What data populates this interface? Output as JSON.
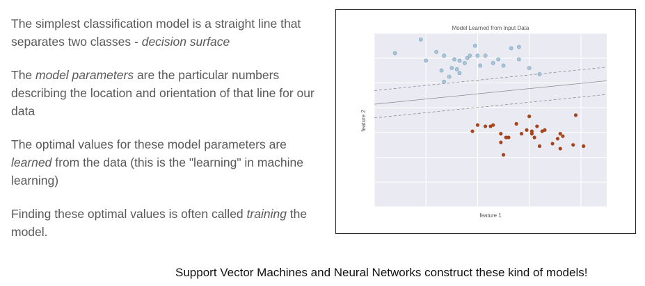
{
  "text": {
    "p1": [
      "The simplest classification model is a straight line that separates two classes - ",
      "decision surface",
      ""
    ],
    "p2": [
      "The ",
      "model parameters",
      " are the particular numbers describing the location and orientation of that line for our data"
    ],
    "p3": [
      "The optimal values for these model parameters are ",
      "learned",
      " from the data (this is the \"learning\" in machine learning)"
    ],
    "p4": [
      "Finding these optimal values is often called ",
      "training",
      " the model."
    ],
    "footer": "Support Vector Machines and Neural Networks construct these kind of models!"
  },
  "chart_data": {
    "type": "scatter",
    "title": "Model Learned from Input Data",
    "xlabel": "feature 1",
    "ylabel": "feature 2",
    "xlim": [
      -1,
      3.5
    ],
    "ylim": [
      -1,
      6
    ],
    "grid": true,
    "colors": {
      "class_a": "#a8c4d8",
      "class_a_edge": "#7fa3bd",
      "class_b": "#a6451c",
      "background": "#eaeaf2",
      "grid": "#ffffff",
      "line": "#8a8a8a"
    },
    "series": [
      {
        "values": [
          [
            -0.6,
            5.2
          ],
          [
            -0.1,
            5.75
          ],
          [
            0.0,
            4.9
          ],
          [
            0.2,
            5.25
          ],
          [
            0.35,
            5.1
          ],
          [
            0.3,
            4.5
          ],
          [
            0.45,
            4.25
          ],
          [
            0.35,
            4.05
          ],
          [
            0.55,
            4.95
          ],
          [
            0.65,
            4.4
          ],
          [
            0.75,
            4.8
          ],
          [
            0.8,
            5.0
          ],
          [
            0.85,
            5.1
          ],
          [
            0.95,
            5.5
          ],
          [
            1.0,
            5.1
          ],
          [
            1.05,
            4.7
          ],
          [
            1.15,
            5.1
          ],
          [
            1.3,
            4.8
          ],
          [
            1.4,
            4.95
          ],
          [
            1.5,
            4.7
          ],
          [
            1.65,
            5.4
          ],
          [
            1.8,
            5.45
          ],
          [
            1.8,
            4.95
          ],
          [
            2.0,
            4.6
          ],
          [
            2.2,
            4.35
          ],
          [
            0.65,
            4.9
          ],
          [
            0.6,
            4.55
          ],
          [
            0.5,
            4.6
          ]
        ]
      },
      {
        "values": [
          [
            0.9,
            2.05
          ],
          [
            1.0,
            2.3
          ],
          [
            1.15,
            2.25
          ],
          [
            1.25,
            2.25
          ],
          [
            1.3,
            2.3
          ],
          [
            1.45,
            1.95
          ],
          [
            1.45,
            1.6
          ],
          [
            1.55,
            1.8
          ],
          [
            1.6,
            1.8
          ],
          [
            1.75,
            2.35
          ],
          [
            1.85,
            1.95
          ],
          [
            1.95,
            2.1
          ],
          [
            2.0,
            2.65
          ],
          [
            2.05,
            1.95
          ],
          [
            2.05,
            2.05
          ],
          [
            2.1,
            1.8
          ],
          [
            2.15,
            2.25
          ],
          [
            2.2,
            1.45
          ],
          [
            2.25,
            2.05
          ],
          [
            2.3,
            2.1
          ],
          [
            2.45,
            1.55
          ],
          [
            2.55,
            1.75
          ],
          [
            2.6,
            1.95
          ],
          [
            2.65,
            1.85
          ],
          [
            2.85,
            1.5
          ],
          [
            2.9,
            2.7
          ],
          [
            3.05,
            1.45
          ],
          [
            1.5,
            1.1
          ],
          [
            2.6,
            1.35
          ]
        ]
      }
    ],
    "decision_line": {
      "slope": 0.21,
      "intercept": 3.35,
      "margin": 0.55
    }
  }
}
